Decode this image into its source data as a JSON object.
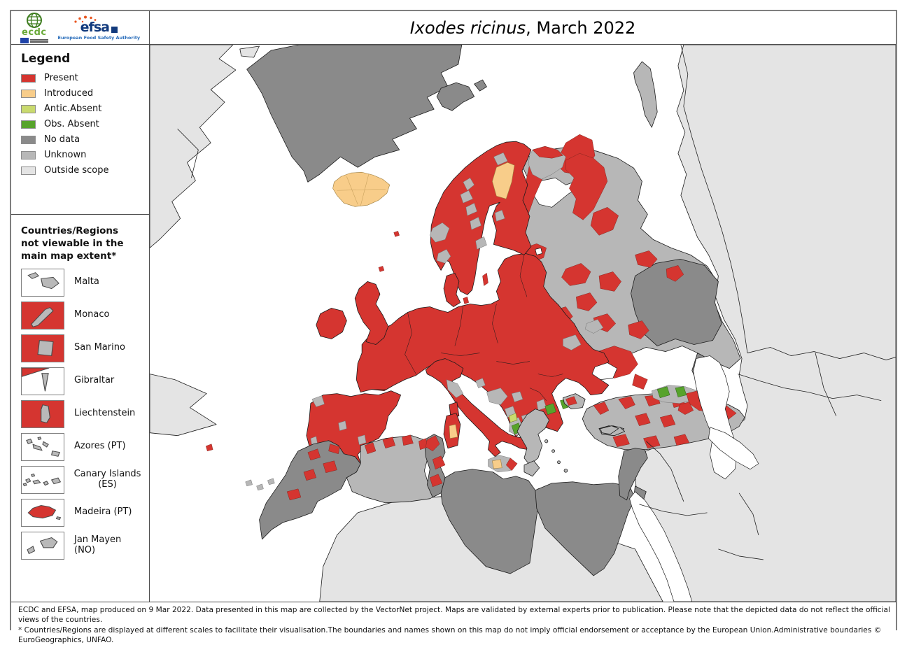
{
  "header": {
    "title_species": "Ixodes ricinus",
    "title_rest": ", March 2022",
    "ecdc_word": "ecdc",
    "efsa_word": "efsa",
    "efsa_tagline": "European Food Safety Authority"
  },
  "legend": {
    "title": "Legend",
    "items": [
      {
        "label": "Present",
        "color": "#d53530"
      },
      {
        "label": "Introduced",
        "color": "#f8cd8a"
      },
      {
        "label": "Antic.Absent",
        "color": "#c9da6e"
      },
      {
        "label": "Obs. Absent",
        "color": "#57a32b"
      },
      {
        "label": "No data",
        "color": "#8a8a8a"
      },
      {
        "label": "Unknown",
        "color": "#b7b7b7"
      },
      {
        "label": "Outside scope",
        "color": "#e4e4e4"
      }
    ]
  },
  "inset_panel": {
    "title": "Countries/Regions not viewable in the main map extent*",
    "items": [
      {
        "label": "Malta",
        "thumb": "malta"
      },
      {
        "label": "Monaco",
        "thumb": "monaco"
      },
      {
        "label": "San Marino",
        "thumb": "sanmarino"
      },
      {
        "label": "Gibraltar",
        "thumb": "gibraltar"
      },
      {
        "label": "Liechtenstein",
        "thumb": "liechtenstein"
      },
      {
        "label": "Azores (PT)",
        "thumb": "azores"
      },
      {
        "label": "Canary Islands (ES)",
        "thumb": "canary"
      },
      {
        "label": "Madeira (PT)",
        "thumb": "madeira"
      },
      {
        "label": "Jan Mayen (NO)",
        "thumb": "janmayen"
      }
    ]
  },
  "map": {
    "colors": {
      "present": "#d53530",
      "introduced": "#f8cd8a",
      "antic_absent": "#c9da6e",
      "obs_absent": "#57a32b",
      "no_data": "#8a8a8a",
      "unknown": "#b7b7b7",
      "outside_scope": "#e4e4e4",
      "sea": "#ffffff"
    }
  },
  "footer": {
    "line1": "ECDC and EFSA, map produced on 9 Mar 2022. Data presented in this map are collected by the VectorNet project. Maps are validated by external experts prior to publication. Please note that the depicted data do not reflect the official views of the countries.",
    "line2": "* Countries/Regions are displayed at different scales to facilitate their visualisation.The boundaries and names shown on this map do not imply official endorsement or acceptance by the European Union.Administrative boundaries © EuroGeographics, UNFAO."
  }
}
